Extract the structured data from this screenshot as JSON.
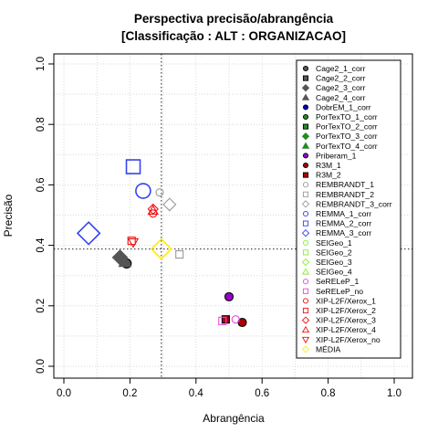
{
  "chart_data": {
    "type": "scatter",
    "title_line1": "Perspectiva precisão/abrangência",
    "title_line2": "[Classificação : ALT : ORGANIZACAO]",
    "xlabel": "Abrangência",
    "ylabel": "Precisão",
    "xlim": [
      0,
      1
    ],
    "ylim": [
      0,
      1
    ],
    "x_ticks": [
      "0.0",
      "0.2",
      "0.4",
      "0.6",
      "0.8",
      "1.0"
    ],
    "y_ticks": [
      "0.0",
      "0.2",
      "0.4",
      "0.6",
      "0.8",
      "1.0"
    ],
    "grid": true,
    "reference_lines": {
      "x": 0.295,
      "y": 0.388
    },
    "legend_position": "top-right",
    "series": [
      {
        "name": "Cage2_1_corr",
        "color": "#555555",
        "shape": "circle",
        "filled": true,
        "size": 5,
        "points": [
          [
            0.19,
            0.34
          ]
        ]
      },
      {
        "name": "Cage2_2_corr",
        "color": "#555555",
        "shape": "square",
        "filled": true,
        "size": 5,
        "points": []
      },
      {
        "name": "Cage2_3_corr",
        "color": "#555555",
        "shape": "diamond",
        "filled": true,
        "size": 6,
        "points": [
          [
            0.17,
            0.36
          ]
        ]
      },
      {
        "name": "Cage2_4_corr",
        "color": "#555555",
        "shape": "triangle",
        "filled": true,
        "size": 5,
        "points": [
          [
            0.185,
            0.345
          ]
        ]
      },
      {
        "name": "DobrEM_1_corr",
        "color": "#0000cc",
        "shape": "circle",
        "filled": true,
        "size": 4,
        "points": []
      },
      {
        "name": "PorTexTO_1_corr",
        "color": "#228b22",
        "shape": "circle",
        "filled": true,
        "size": 4,
        "points": []
      },
      {
        "name": "PorTexTO_2_corr",
        "color": "#228b22",
        "shape": "square",
        "filled": true,
        "size": 4,
        "points": []
      },
      {
        "name": "PorTexTO_3_corr",
        "color": "#228b22",
        "shape": "diamond",
        "filled": true,
        "size": 4,
        "points": []
      },
      {
        "name": "PorTexTO_4_corr",
        "color": "#228b22",
        "shape": "triangle",
        "filled": true,
        "size": 4,
        "points": []
      },
      {
        "name": "Priberam_1",
        "color": "#9900cc",
        "shape": "circle",
        "filled": true,
        "size": 4.5,
        "points": [
          [
            0.5,
            0.23
          ]
        ]
      },
      {
        "name": "R3M_1",
        "color": "#aa0000",
        "shape": "circle",
        "filled": true,
        "size": 4.5,
        "points": [
          [
            0.54,
            0.145
          ]
        ]
      },
      {
        "name": "R3M_2",
        "color": "#aa0000",
        "shape": "square",
        "filled": true,
        "size": 4,
        "points": [
          [
            0.49,
            0.155
          ]
        ]
      },
      {
        "name": "REMBRANDT_1",
        "color": "#999999",
        "shape": "circle",
        "filled": false,
        "size": 4,
        "points": [
          [
            0.29,
            0.575
          ]
        ]
      },
      {
        "name": "REMBRANDT_2",
        "color": "#999999",
        "shape": "square",
        "filled": false,
        "size": 4,
        "points": [
          [
            0.35,
            0.37
          ]
        ]
      },
      {
        "name": "REMBRANDT_3_corr",
        "color": "#999999",
        "shape": "diamond",
        "filled": false,
        "size": 5,
        "points": [
          [
            0.32,
            0.535
          ]
        ]
      },
      {
        "name": "REMMA_1_corr",
        "color": "#3344ee",
        "shape": "circle",
        "filled": false,
        "size": 8,
        "points": [
          [
            0.24,
            0.58
          ]
        ]
      },
      {
        "name": "REMMA_2_corr",
        "color": "#3344ee",
        "shape": "square",
        "filled": false,
        "size": 7.5,
        "points": [
          [
            0.21,
            0.66
          ]
        ]
      },
      {
        "name": "REMMA_3_corr",
        "color": "#3344ee",
        "shape": "diamond",
        "filled": false,
        "size": 9,
        "points": [
          [
            0.075,
            0.44
          ]
        ]
      },
      {
        "name": "SEIGeo_1",
        "color": "#88ee33",
        "shape": "circle",
        "filled": false,
        "size": 4,
        "points": []
      },
      {
        "name": "SEIGeo_2",
        "color": "#88ee33",
        "shape": "square",
        "filled": false,
        "size": 4,
        "points": []
      },
      {
        "name": "SEIGeo_3",
        "color": "#88ee33",
        "shape": "diamond",
        "filled": false,
        "size": 4,
        "points": []
      },
      {
        "name": "SEIGeo_4",
        "color": "#88ee33",
        "shape": "triangle",
        "filled": false,
        "size": 4,
        "points": []
      },
      {
        "name": "SeRELeP_1",
        "color": "#ee44ee",
        "shape": "circle",
        "filled": false,
        "size": 4,
        "points": [
          [
            0.52,
            0.155
          ]
        ]
      },
      {
        "name": "SeRELeP_no",
        "color": "#ee44ee",
        "shape": "square",
        "filled": false,
        "size": 4,
        "points": [
          [
            0.48,
            0.15
          ]
        ]
      },
      {
        "name": "XIP-L2F/Xerox_1",
        "color": "#ee1111",
        "shape": "circle",
        "filled": false,
        "size": 4,
        "points": [
          [
            0.27,
            0.505
          ]
        ]
      },
      {
        "name": "XIP-L2F/Xerox_2",
        "color": "#ee1111",
        "shape": "square",
        "filled": false,
        "size": 4,
        "points": [
          [
            0.205,
            0.415
          ]
        ]
      },
      {
        "name": "XIP-L2F/Xerox_3",
        "color": "#ee1111",
        "shape": "diamond",
        "filled": false,
        "size": 4,
        "points": [
          [
            0.27,
            0.52
          ]
        ]
      },
      {
        "name": "XIP-L2F/Xerox_4",
        "color": "#ee1111",
        "shape": "triangle",
        "filled": false,
        "size": 4,
        "points": [
          [
            0.27,
            0.515
          ]
        ]
      },
      {
        "name": "XIP-L2F/Xerox_no",
        "color": "#ee1111",
        "shape": "triangle-down",
        "filled": false,
        "size": 4,
        "points": [
          [
            0.21,
            0.41
          ]
        ]
      },
      {
        "name": "MÉDIA",
        "color": "#ffee00",
        "shape": "diamond",
        "filled": false,
        "size": 8,
        "points": [
          [
            0.295,
            0.388
          ]
        ]
      }
    ]
  }
}
